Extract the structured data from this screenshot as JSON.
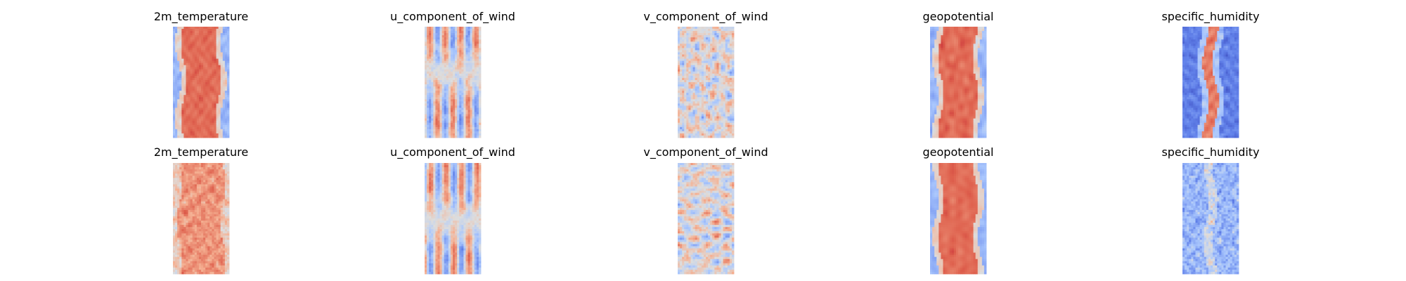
{
  "chart_data": {
    "type": "heatmap",
    "layout": {
      "rows": 2,
      "cols": 5
    },
    "colormap": "coolwarm",
    "colors": {
      "low": "#3b4cc0",
      "mid": "#dddddd",
      "high": "#b40426"
    },
    "axes": "off",
    "rows": [
      {
        "panels": [
          {
            "title": "2m_temperature",
            "pattern": "warm_core"
          },
          {
            "title": "u_component_of_wind",
            "pattern": "mixed_vertical"
          },
          {
            "title": "v_component_of_wind",
            "pattern": "mixed_noise"
          },
          {
            "title": "geopotential",
            "pattern": "warm_core"
          },
          {
            "title": "specific_humidity",
            "pattern": "cold_with_warm_streak"
          }
        ]
      },
      {
        "panels": [
          {
            "title": "2m_temperature",
            "pattern": "warm_noisy"
          },
          {
            "title": "u_component_of_wind",
            "pattern": "mixed_vertical"
          },
          {
            "title": "v_component_of_wind",
            "pattern": "mixed_noise"
          },
          {
            "title": "geopotential",
            "pattern": "warm_core"
          },
          {
            "title": "specific_humidity",
            "pattern": "cool_noisy"
          }
        ]
      }
    ]
  }
}
